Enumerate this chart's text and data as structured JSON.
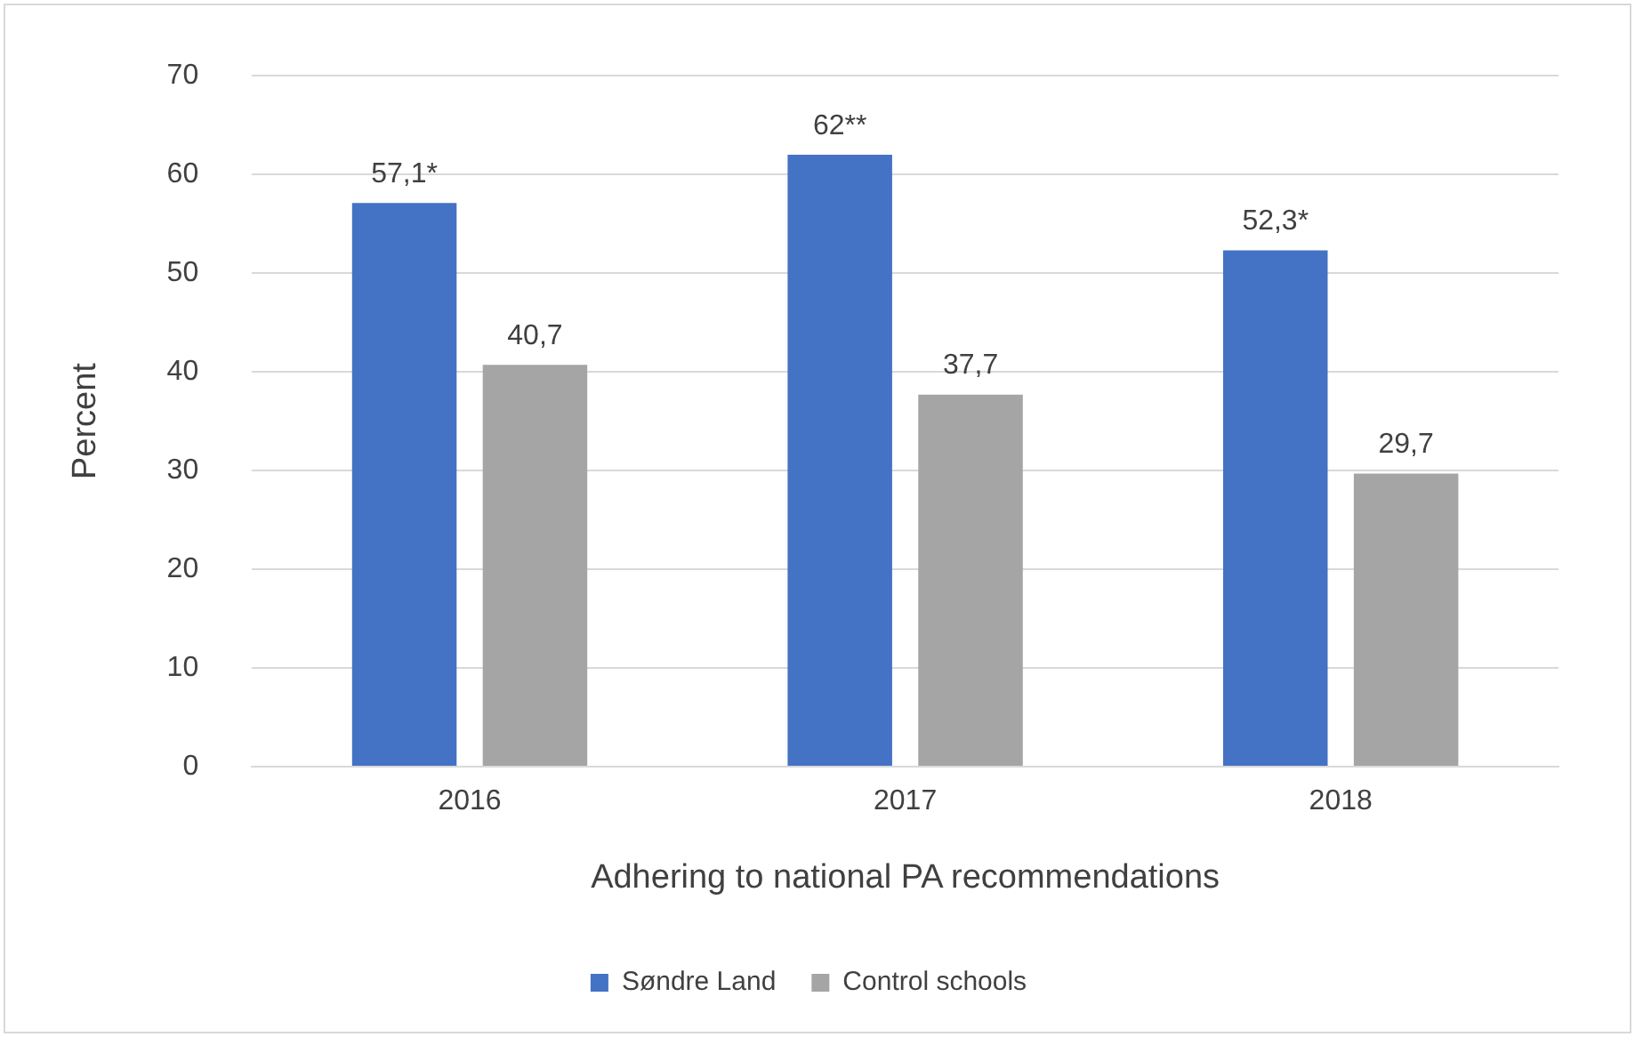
{
  "chart_data": {
    "type": "bar",
    "xlabel": "Adhering to national PA recommendations",
    "ylabel": "Percent",
    "categories": [
      "2016",
      "2017",
      "2018"
    ],
    "series": [
      {
        "name": "Søndre Land",
        "color": "#4472c4",
        "values": [
          57.1,
          62,
          52.3
        ],
        "value_labels": [
          "57,1*",
          "62**",
          "52,3*"
        ]
      },
      {
        "name": "Control schools",
        "color": "#a5a5a5",
        "values": [
          40.7,
          37.7,
          29.7
        ],
        "value_labels": [
          "40,7",
          "37,7",
          "29,7"
        ]
      }
    ],
    "ylim": [
      0,
      70
    ],
    "yticks": [
      0,
      10,
      20,
      30,
      40,
      50,
      60,
      70
    ],
    "grid": "y",
    "legend": "bottom"
  }
}
